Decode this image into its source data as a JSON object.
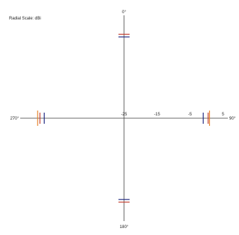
{
  "chart_data": {
    "type": "polar",
    "scale_label": "Radial Scale: dBi",
    "radial_ticks": [
      "-25",
      "-15",
      "-5",
      "5"
    ],
    "radial_range": [
      -25,
      5
    ],
    "angle_labels": {
      "top": "0°",
      "right": "90°",
      "bottom": "180°",
      "left": "270°"
    },
    "grid": false,
    "series": [
      {
        "color": "#c0392b",
        "points": [
          {
            "angle": 0,
            "value": 0.5
          },
          {
            "angle": 90,
            "value": 0.5
          },
          {
            "angle": 180,
            "value": 0.5
          },
          {
            "angle": 270,
            "value": 0.5
          }
        ]
      },
      {
        "color": "#1a237e",
        "points": [
          {
            "angle": 0,
            "value": -0.3
          },
          {
            "angle": 90,
            "value": -1.0
          },
          {
            "angle": 180,
            "value": -0.3
          },
          {
            "angle": 270,
            "value": -0.8
          }
        ]
      },
      {
        "color": "#e67e22",
        "points": [
          {
            "angle": 90,
            "value": 0.9
          },
          {
            "angle": 270,
            "value": 1.2
          }
        ]
      }
    ]
  }
}
